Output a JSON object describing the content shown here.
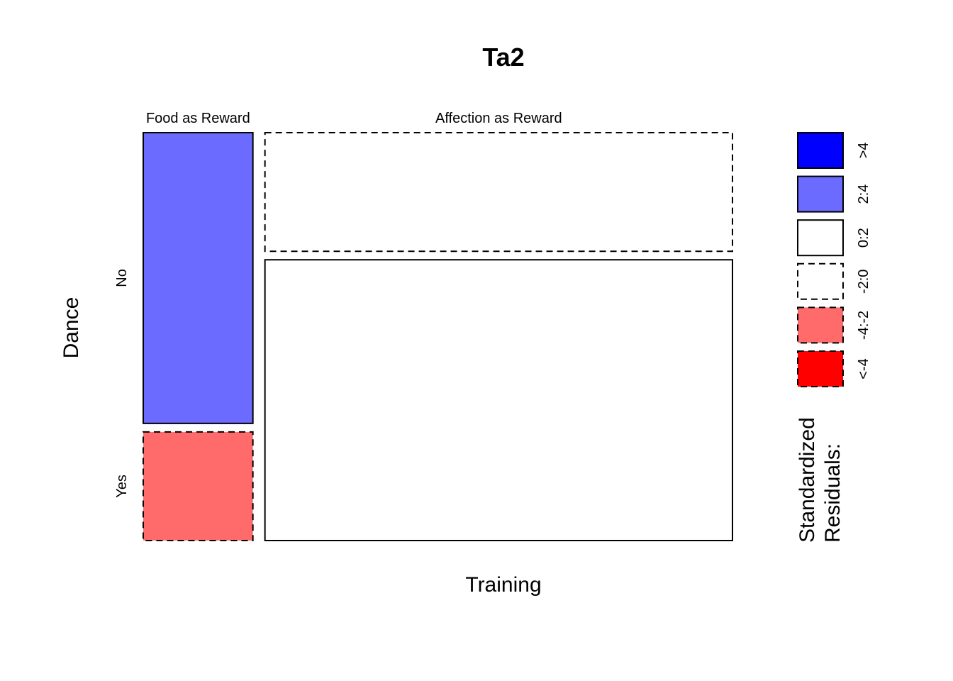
{
  "chart_data": {
    "type": "mosaic",
    "title": "Ta2",
    "xlabel": "Training",
    "ylabel": "Dance",
    "x_categories": [
      "Food as Reward",
      "Affection as Reward"
    ],
    "y_categories": [
      "No",
      "Yes"
    ],
    "cells": [
      {
        "x": "Food as Reward",
        "y": "No",
        "proportion_of_column": 0.728,
        "residual_band": "2:4"
      },
      {
        "x": "Food as Reward",
        "y": "Yes",
        "proportion_of_column": 0.272,
        "residual_band": "-4:-2"
      },
      {
        "x": "Affection as Reward",
        "y": "No",
        "proportion_of_column": 0.297,
        "residual_band": "-2:0"
      },
      {
        "x": "Affection as Reward",
        "y": "Yes",
        "proportion_of_column": 0.703,
        "residual_band": "0:2"
      }
    ],
    "column_proportions": [
      0.19,
      0.81
    ],
    "legend": {
      "title_lines": [
        "Standardized",
        "Residuals:"
      ],
      "position": "right",
      "entries": [
        {
          "label": ">4",
          "color": "#0000ff",
          "dashed": false
        },
        {
          "label": "2:4",
          "color": "#6b6bff",
          "dashed": false
        },
        {
          "label": "0:2",
          "color": "#ffffff",
          "dashed": false
        },
        {
          "label": "-2:0",
          "color": "#ffffff",
          "dashed": true
        },
        {
          "label": "-4:-2",
          "color": "#ff6b6b",
          "dashed": true
        },
        {
          "label": "<-4",
          "color": "#ff0000",
          "dashed": true
        }
      ]
    }
  }
}
